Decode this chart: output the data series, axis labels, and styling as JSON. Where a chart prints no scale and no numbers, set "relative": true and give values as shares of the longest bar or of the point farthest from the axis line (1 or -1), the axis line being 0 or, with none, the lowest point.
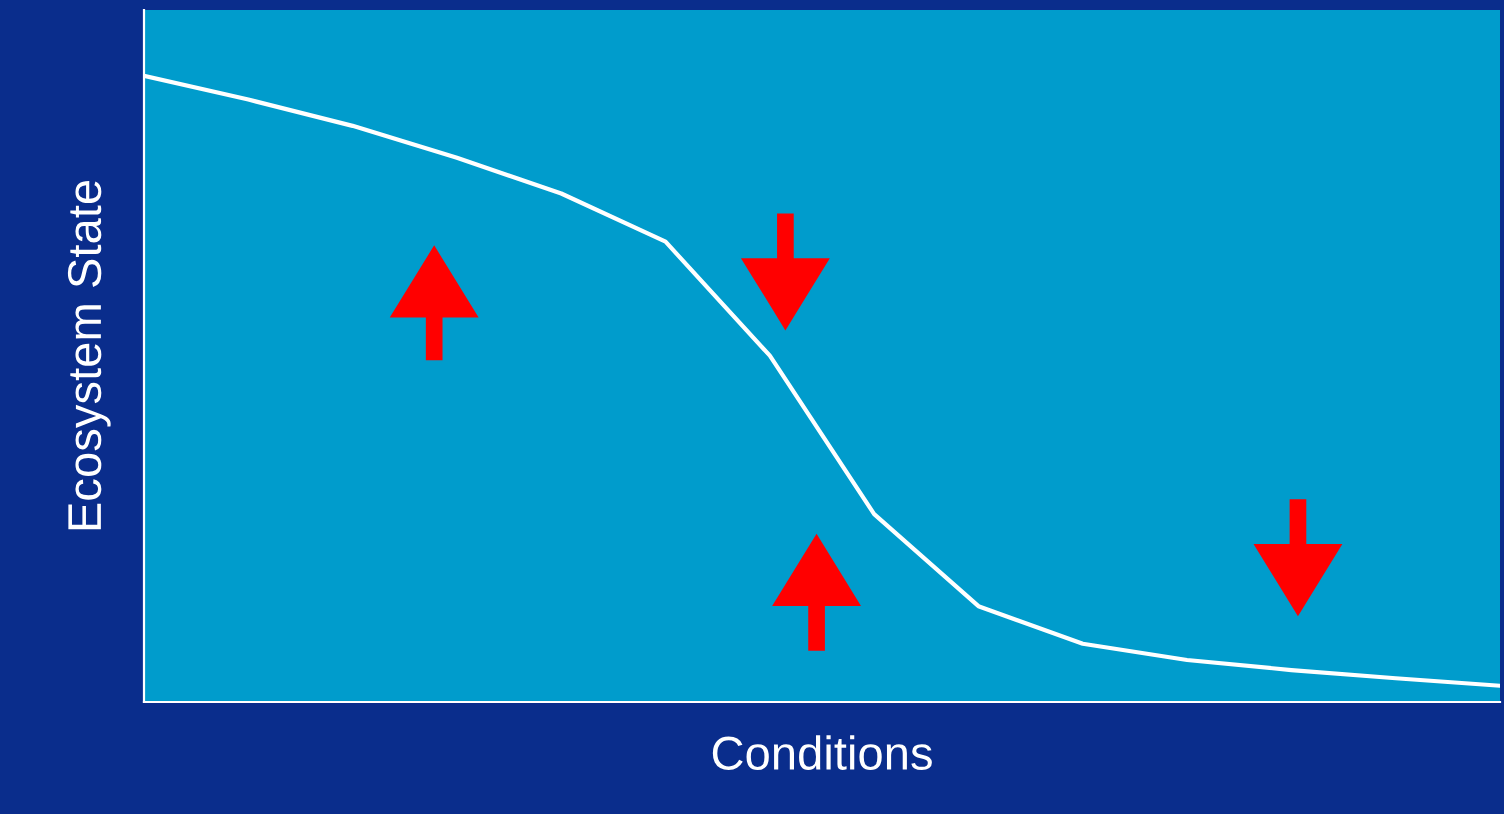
{
  "chart_data": {
    "type": "line",
    "relative": true,
    "xlabel": "Conditions",
    "ylabel": "Ecosystem State",
    "categories": [
      null,
      null,
      null,
      null,
      null,
      null,
      null,
      null,
      null,
      null,
      null,
      null,
      null,
      null
    ],
    "series": [
      {
        "color": "#ffffff",
        "values": [
          1,
          0.962,
          0.92,
          0.869,
          0.812,
          0.735,
          0.553,
          0.3,
          0.153,
          0.093,
          0.067,
          0.051,
          0.038,
          0.026
        ]
      }
    ],
    "tick_labels": false,
    "marker": "none",
    "line_style": "solid"
  }
}
